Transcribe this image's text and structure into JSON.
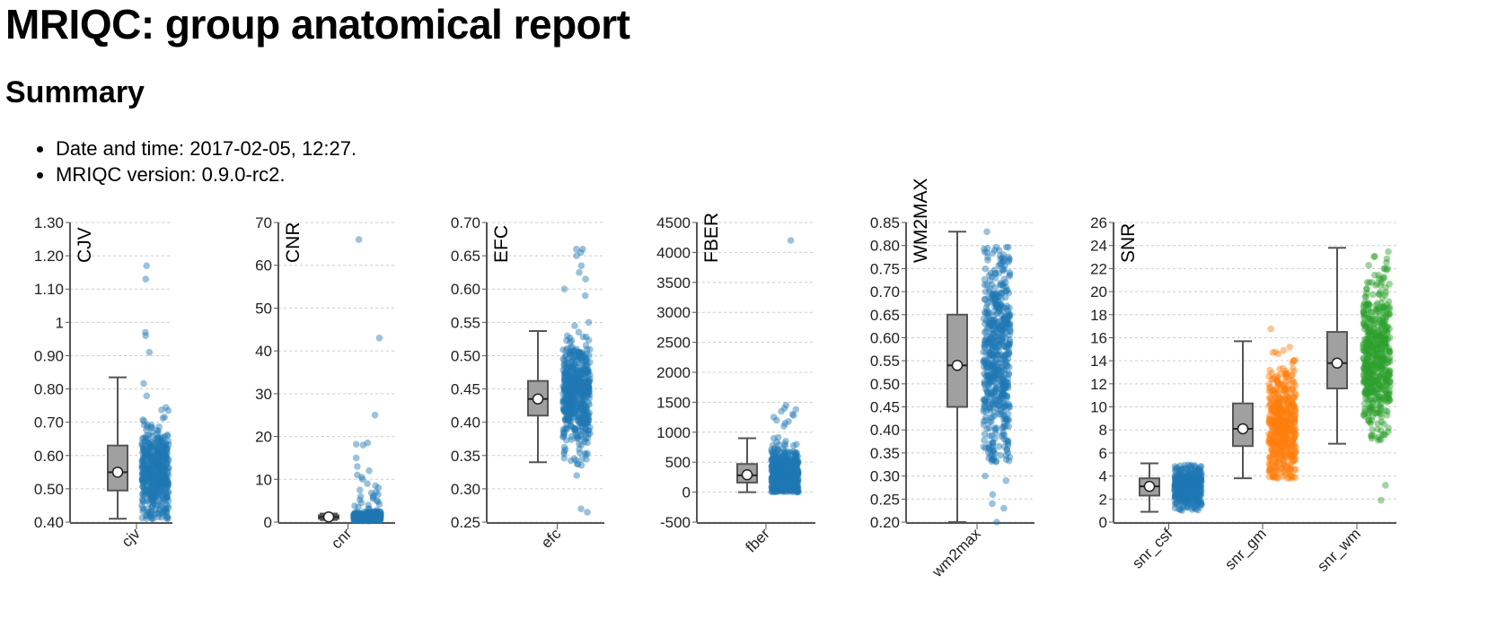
{
  "page": {
    "title": "MRIQC: group anatomical report",
    "summary_heading": "Summary",
    "summary_items": [
      "Date and time: 2017-02-05, 12:27.",
      "MRIQC version: 0.9.0-rc2."
    ]
  },
  "colors": {
    "box_fill": "#a0a0a0",
    "box_stroke": "#555555",
    "blue": "#1f77b4",
    "orange": "#ff7f0e",
    "green": "#2ca02c",
    "grid": "#cccccc"
  },
  "chart_data": [
    {
      "type": "box_strip",
      "ylabel": "CJV",
      "yticks": [
        "0.40",
        "0.50",
        "0.60",
        "0.70",
        "0.80",
        "0.90",
        "1",
        "1.10",
        "1.20",
        "1.30"
      ],
      "ylim": [
        0.4,
        1.3
      ],
      "series": [
        {
          "category": "cjv",
          "color": "#1f77b4",
          "box": {
            "whisker_low": 0.41,
            "q1": 0.495,
            "median": 0.55,
            "q3": 0.63,
            "whisker_high": 0.835,
            "mean": 0.55
          },
          "points": {
            "low": 0.41,
            "high": 0.84,
            "n": 520,
            "center": 0.55,
            "spread": 0.07
          },
          "outliers": [
            1.17,
            1.13,
            0.97,
            0.96,
            0.91
          ]
        }
      ]
    },
    {
      "type": "box_strip",
      "ylabel": "CNR",
      "yticks": [
        "0",
        "10",
        "20",
        "30",
        "40",
        "50",
        "60",
        "70"
      ],
      "ylim": [
        0,
        70
      ],
      "series": [
        {
          "category": "cnr",
          "color": "#1f77b4",
          "box": {
            "whisker_low": 0.5,
            "q1": 0.8,
            "median": 1.2,
            "q3": 1.6,
            "whisker_high": 2.0,
            "mean": 1.2
          },
          "points": {
            "low": 0.3,
            "high": 2.5,
            "n": 500,
            "center": 1.2,
            "spread": 0.5
          },
          "outliers": [
            66,
            43,
            25,
            18.5,
            18.2,
            18,
            15,
            13,
            12,
            11,
            10.5,
            10,
            9,
            8.5,
            8,
            7.5,
            7,
            6.8,
            6.5,
            6.2,
            6,
            5.8,
            5.5,
            5.2,
            5,
            4.8,
            4.5,
            4.2,
            4,
            3.8,
            3.5,
            3.2,
            3,
            2.8
          ]
        }
      ]
    },
    {
      "type": "box_strip",
      "ylabel": "EFC",
      "yticks": [
        "0.25",
        "0.30",
        "0.35",
        "0.40",
        "0.45",
        "0.50",
        "0.55",
        "0.60",
        "0.65",
        "0.70"
      ],
      "ylim": [
        0.25,
        0.7
      ],
      "series": [
        {
          "category": "efc",
          "color": "#1f77b4",
          "box": {
            "whisker_low": 0.34,
            "q1": 0.41,
            "median": 0.435,
            "q3": 0.462,
            "whisker_high": 0.537,
            "mean": 0.435
          },
          "points": {
            "low": 0.335,
            "high": 0.58,
            "n": 520,
            "center": 0.44,
            "spread": 0.04
          },
          "outliers": [
            0.66,
            0.66,
            0.655,
            0.65,
            0.635,
            0.625,
            0.615,
            0.6,
            0.59,
            0.32,
            0.27,
            0.265
          ]
        }
      ]
    },
    {
      "type": "box_strip",
      "ylabel": "FBER",
      "yticks": [
        "-500",
        "0",
        "500",
        "1000",
        "1500",
        "2000",
        "2500",
        "3000",
        "3500",
        "4000",
        "4500"
      ],
      "ylim": [
        -500,
        4500
      ],
      "series": [
        {
          "category": "fber",
          "color": "#1f77b4",
          "box": {
            "whisker_low": 0,
            "q1": 160,
            "median": 280,
            "q3": 470,
            "whisker_high": 900,
            "mean": 290
          },
          "points": {
            "low": 0,
            "high": 1000,
            "n": 520,
            "center": 300,
            "spread": 220
          },
          "outliers": [
            4200,
            1450,
            1400,
            1380,
            1350,
            1300,
            1280,
            1250,
            1200,
            1180,
            1150,
            1100
          ]
        }
      ]
    },
    {
      "type": "box_strip",
      "ylabel": "WM2MAX",
      "yticks": [
        "0.20",
        "0.25",
        "0.30",
        "0.35",
        "0.40",
        "0.45",
        "0.50",
        "0.55",
        "0.60",
        "0.65",
        "0.70",
        "0.75",
        "0.80",
        "0.85"
      ],
      "ylim": [
        0.2,
        0.85
      ],
      "series": [
        {
          "category": "wm2max",
          "color": "#1f77b4",
          "box": {
            "whisker_low": 0.2,
            "q1": 0.45,
            "median": 0.54,
            "q3": 0.65,
            "whisker_high": 0.83,
            "mean": 0.54
          },
          "points": {
            "low": 0.33,
            "high": 0.8,
            "n": 560,
            "center": 0.56,
            "spread": 0.12
          },
          "outliers": [
            0.83,
            0.79,
            0.3,
            0.29,
            0.26,
            0.24,
            0.23,
            0.2
          ]
        }
      ]
    },
    {
      "type": "box_strip",
      "ylabel": "SNR",
      "yticks": [
        "0",
        "2",
        "4",
        "6",
        "8",
        "10",
        "12",
        "14",
        "16",
        "18",
        "20",
        "22",
        "24",
        "26"
      ],
      "ylim": [
        0,
        26
      ],
      "series": [
        {
          "category": "snr_csf",
          "color": "#1f77b4",
          "box": {
            "whisker_low": 0.9,
            "q1": 2.3,
            "median": 3.1,
            "q3": 3.8,
            "whisker_high": 5.1,
            "mean": 3.1
          },
          "points": {
            "low": 1.0,
            "high": 5.0,
            "n": 450,
            "center": 3.0,
            "spread": 0.9
          },
          "outliers": []
        },
        {
          "category": "snr_gm",
          "color": "#ff7f0e",
          "box": {
            "whisker_low": 3.8,
            "q1": 6.6,
            "median": 8.1,
            "q3": 10.3,
            "whisker_high": 15.7,
            "mean": 8.1
          },
          "points": {
            "low": 3.8,
            "high": 18.7,
            "n": 500,
            "center": 8.5,
            "spread": 2.6
          },
          "outliers": []
        },
        {
          "category": "snr_wm",
          "color": "#2ca02c",
          "box": {
            "whisker_low": 6.8,
            "q1": 11.6,
            "median": 13.8,
            "q3": 16.5,
            "whisker_high": 23.8,
            "mean": 13.8
          },
          "points": {
            "low": 7.0,
            "high": 25.8,
            "n": 520,
            "center": 14.5,
            "spread": 3.3
          },
          "outliers": [
            3.2,
            1.9
          ]
        }
      ]
    }
  ]
}
